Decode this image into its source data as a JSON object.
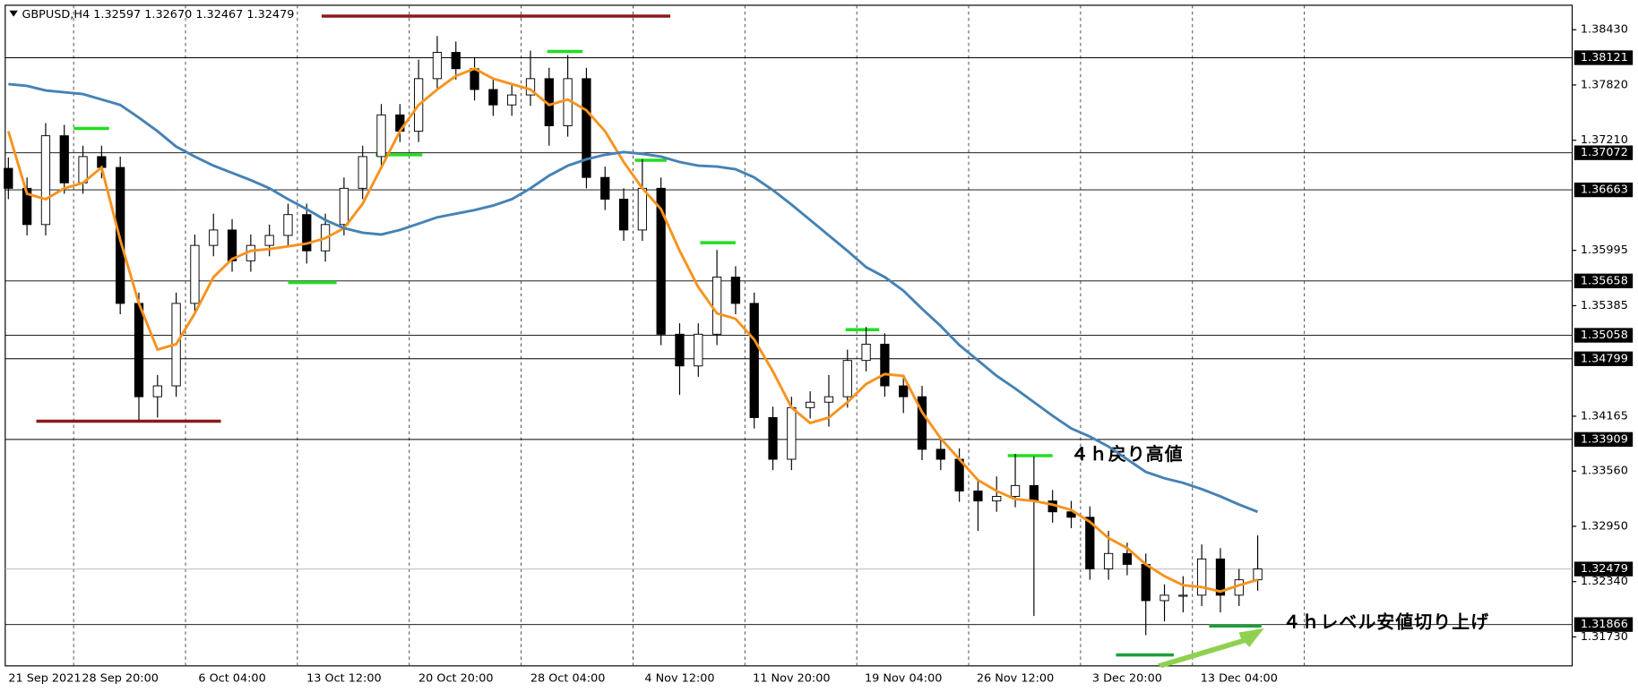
{
  "chart_data": {
    "type": "candlestick",
    "title": "GBPUSD,H4  1.32597 1.32670 1.32467 1.32479",
    "categories": [
      "21 Sep 2021",
      null,
      null,
      null,
      null,
      null,
      "28 Sep 20:00",
      null,
      null,
      null,
      null,
      null,
      "6 Oct 04:00",
      null,
      null,
      null,
      null,
      null,
      "13 Oct 12:00",
      null,
      null,
      null,
      null,
      null,
      "20 Oct 20:00",
      null,
      null,
      null,
      null,
      null,
      "28 Oct 04:00",
      null,
      null,
      null,
      null,
      null,
      "4 Nov 12:00",
      null,
      null,
      null,
      null,
      null,
      "11 Nov 20:00",
      null,
      null,
      null,
      null,
      null,
      "19 Nov 04:00",
      null,
      null,
      null,
      null,
      null,
      "26 Nov 12:00",
      null,
      null,
      null,
      null,
      null,
      "3 Dec 20:00",
      null,
      null,
      null,
      null,
      null,
      "13 Dec 04:00",
      null
    ],
    "ohlc": {
      "open": [
        1.369,
        1.3668,
        1.3628,
        1.3726,
        1.3674,
        1.3703,
        1.3691,
        1.3541,
        1.3438,
        1.345,
        1.3541,
        1.3605,
        1.3622,
        1.3588,
        1.3605,
        1.3616,
        1.3639,
        1.3599,
        1.3628,
        1.3668,
        1.3703,
        1.3749,
        1.3731,
        1.3789,
        1.3818,
        1.38,
        1.3777,
        1.376,
        1.3771,
        1.3789,
        1.3737,
        1.3789,
        1.368,
        1.3656,
        1.3622,
        1.3668,
        1.3507,
        1.3472,
        1.3507,
        1.357,
        1.3541,
        1.3415,
        1.3369,
        1.3426,
        1.3432,
        1.3438,
        1.3478,
        1.3496,
        1.345,
        1.3438,
        1.338,
        1.3369,
        1.3334,
        1.3323,
        1.3328,
        1.334,
        1.3323,
        1.3311,
        1.3305,
        1.3248,
        1.3265,
        1.3253,
        1.3213,
        1.3219,
        1.3219,
        1.3259,
        1.3219,
        1.3236
      ],
      "high": [
        1.3702,
        1.368,
        1.374,
        1.3738,
        1.3715,
        1.3715,
        1.3703,
        1.3553,
        1.3462,
        1.3553,
        1.3617,
        1.364,
        1.3634,
        1.3617,
        1.3628,
        1.3651,
        1.3651,
        1.364,
        1.368,
        1.3715,
        1.3761,
        1.3761,
        1.381,
        1.3836,
        1.383,
        1.3812,
        1.3789,
        1.3783,
        1.382,
        1.3801,
        1.3815,
        1.3801,
        1.3692,
        1.3668,
        1.37,
        1.368,
        1.3519,
        1.3519,
        1.36,
        1.3582,
        1.3553,
        1.3427,
        1.3438,
        1.3444,
        1.3462,
        1.349,
        1.3515,
        1.3508,
        1.3462,
        1.345,
        1.3392,
        1.3381,
        1.3346,
        1.335,
        1.3375,
        1.3372,
        1.3335,
        1.3323,
        1.3317,
        1.329,
        1.3277,
        1.3265,
        1.3231,
        1.324,
        1.3275,
        1.3271,
        1.3248,
        1.3285
      ],
      "low": [
        1.3656,
        1.3616,
        1.3616,
        1.3662,
        1.3662,
        1.3679,
        1.3529,
        1.3412,
        1.3415,
        1.3438,
        1.3529,
        1.3593,
        1.3576,
        1.3576,
        1.3593,
        1.3604,
        1.3585,
        1.3587,
        1.3616,
        1.3656,
        1.3691,
        1.3719,
        1.3719,
        1.3777,
        1.3788,
        1.3765,
        1.3748,
        1.3748,
        1.3759,
        1.3715,
        1.3725,
        1.3668,
        1.3644,
        1.361,
        1.361,
        1.3495,
        1.344,
        1.346,
        1.3495,
        1.3529,
        1.3403,
        1.3357,
        1.3357,
        1.3414,
        1.3405,
        1.3426,
        1.3466,
        1.3438,
        1.342,
        1.3368,
        1.3357,
        1.3322,
        1.329,
        1.3311,
        1.3316,
        1.3196,
        1.3299,
        1.3293,
        1.3236,
        1.3236,
        1.3241,
        1.3175,
        1.319,
        1.32,
        1.3207,
        1.32,
        1.3207,
        1.3224
      ],
      "close": [
        1.3668,
        1.3628,
        1.3726,
        1.3674,
        1.3703,
        1.3691,
        1.3541,
        1.3438,
        1.345,
        1.3541,
        1.3605,
        1.3622,
        1.3588,
        1.3605,
        1.3616,
        1.3639,
        1.3599,
        1.3628,
        1.3668,
        1.3703,
        1.3749,
        1.3731,
        1.3789,
        1.3818,
        1.38,
        1.3777,
        1.376,
        1.3771,
        1.3789,
        1.3737,
        1.3789,
        1.368,
        1.3656,
        1.3622,
        1.3668,
        1.3507,
        1.3472,
        1.3507,
        1.357,
        1.3541,
        1.3415,
        1.3369,
        1.3426,
        1.3432,
        1.3438,
        1.3478,
        1.3496,
        1.345,
        1.3438,
        1.338,
        1.3369,
        1.3334,
        1.3323,
        1.3328,
        1.334,
        1.3323,
        1.3311,
        1.3305,
        1.3248,
        1.3265,
        1.3253,
        1.3213,
        1.3219,
        1.3219,
        1.3259,
        1.3219,
        1.3236,
        1.3248
      ]
    },
    "lines": [
      {
        "color": "#f7931e",
        "values": [
          1.3731,
          1.3662,
          1.3656,
          1.3668,
          1.3674,
          1.3691,
          1.3611,
          1.3541,
          1.349,
          1.3496,
          1.353,
          1.357,
          1.359,
          1.3599,
          1.3601,
          1.3604,
          1.3607,
          1.3613,
          1.3624,
          1.3651,
          1.3691,
          1.3731,
          1.376,
          1.3777,
          1.3792,
          1.38,
          1.3789,
          1.3783,
          1.3777,
          1.376,
          1.3766,
          1.3754,
          1.3731,
          1.3697,
          1.3668,
          1.3645,
          1.3599,
          1.3559,
          1.353,
          1.3524,
          1.3501,
          1.3466,
          1.3426,
          1.3409,
          1.3415,
          1.3432,
          1.3452,
          1.3463,
          1.3461,
          1.3421,
          1.3392,
          1.3369,
          1.3346,
          1.3334,
          1.3325,
          1.3323,
          1.3319,
          1.3313,
          1.33,
          1.3282,
          1.3271,
          1.3253,
          1.324,
          1.323,
          1.3228,
          1.3223,
          1.323,
          1.3236
        ]
      },
      {
        "color": "#4682b4",
        "values": [
          1.3783,
          1.3781,
          1.3776,
          1.3774,
          1.3772,
          1.3766,
          1.376,
          1.3746,
          1.3731,
          1.3714,
          1.3703,
          1.3693,
          1.3685,
          1.3677,
          1.3668,
          1.3656,
          1.3645,
          1.3633,
          1.3624,
          1.3619,
          1.3617,
          1.3622,
          1.3629,
          1.3636,
          1.364,
          1.3644,
          1.3649,
          1.3656,
          1.3668,
          1.3682,
          1.3693,
          1.37,
          1.3705,
          1.3708,
          1.3706,
          1.3703,
          1.3697,
          1.3693,
          1.3692,
          1.3689,
          1.368,
          1.3666,
          1.365,
          1.3633,
          1.3616,
          1.3599,
          1.3581,
          1.357,
          1.3555,
          1.3535,
          1.3516,
          1.3495,
          1.3478,
          1.3461,
          1.3447,
          1.3432,
          1.3417,
          1.3403,
          1.3394,
          1.3383,
          1.3369,
          1.3355,
          1.3348,
          1.3343,
          1.3336,
          1.3328,
          1.3319,
          1.3311
        ]
      }
    ],
    "levels": [
      1.38121,
      1.37072,
      1.36663,
      1.35658,
      1.35058,
      1.34799,
      1.33909,
      1.31866
    ],
    "current_price": 1.32479,
    "segments": [
      {
        "value": 1.3858,
        "from": 16.8,
        "to": 35.5,
        "color": "#8b1a1a"
      },
      {
        "value": 1.3411,
        "from": 1.5,
        "to": 11.4,
        "color": "#8b1a1a"
      },
      {
        "value": 1.3734,
        "from": 3.5,
        "to": 5.4,
        "color": "#22dd22"
      },
      {
        "value": 1.3564,
        "from": 15.0,
        "to": 17.6,
        "color": "#22dd22"
      },
      {
        "value": 1.3705,
        "from": 19.7,
        "to": 22.2,
        "color": "#22dd22"
      },
      {
        "value": 1.3819,
        "from": 28.9,
        "to": 30.8,
        "color": "#22dd22"
      },
      {
        "value": 1.3699,
        "from": 33.6,
        "to": 35.3,
        "color": "#22dd22"
      },
      {
        "value": 1.3608,
        "from": 37.1,
        "to": 39.0,
        "color": "#22dd22"
      },
      {
        "value": 1.3512,
        "from": 44.9,
        "to": 46.7,
        "color": "#22dd22"
      },
      {
        "value": 1.3373,
        "from": 53.6,
        "to": 56.0,
        "color": "#22dd22"
      },
      {
        "value": 1.3185,
        "from": 64.4,
        "to": 67.2,
        "color": "#1e9e3a"
      },
      {
        "value": 1.3153,
        "from": 59.4,
        "to": 62.5,
        "color": "#1e9e3a"
      }
    ],
    "annotations": [
      "４ｈ戻り高値",
      "４ｈレベル安値切り上げ"
    ],
    "ylim": [
      1.3141,
      1.387
    ],
    "yticks": [
      {
        "value": 1.3843,
        "label": "1.38430"
      },
      {
        "value": 1.3782,
        "label": "1.37820"
      },
      {
        "value": 1.3721,
        "label": "1.37210"
      },
      {
        "value": 1.35995,
        "label": "1.35995"
      },
      {
        "value": 1.35385,
        "label": "1.35385"
      },
      {
        "value": 1.34165,
        "label": "1.34165"
      },
      {
        "value": 1.3356,
        "label": "1.33560"
      },
      {
        "value": 1.3295,
        "label": "1.32950"
      },
      {
        "value": 1.3234,
        "label": "1.32340"
      },
      {
        "value": 1.3173,
        "label": "1.31730"
      }
    ]
  }
}
